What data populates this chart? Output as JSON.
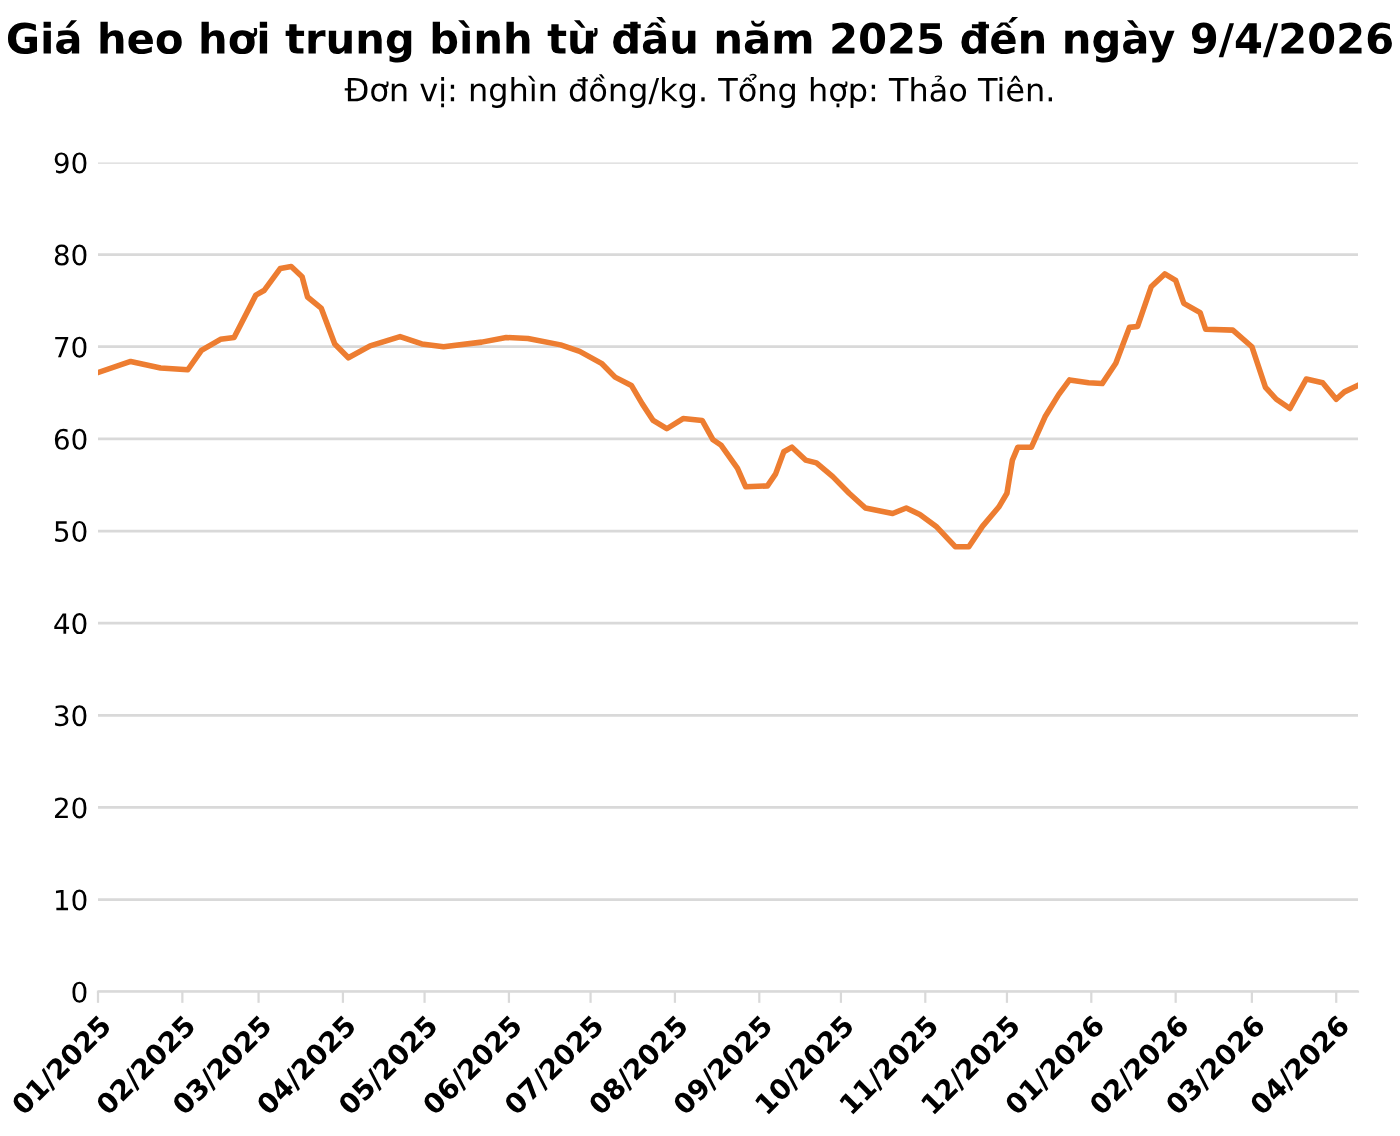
{
  "chart_data": {
    "type": "line",
    "title": "Giá heo hơi trung bình từ đầu năm 2025 đến ngày 9/4/2026",
    "subtitle": "Đơn vị: nghìn đồng/kg. Tổng hợp: Thảo Tiên.",
    "x": [
      "2025-01-01",
      "2025-01-13",
      "2025-01-24",
      "2025-02-03",
      "2025-02-08",
      "2025-02-15",
      "2025-02-20",
      "2025-02-28",
      "2025-03-03",
      "2025-03-09",
      "2025-03-13",
      "2025-03-17",
      "2025-03-19",
      "2025-03-24",
      "2025-03-29",
      "2025-04-03",
      "2025-04-11",
      "2025-04-22",
      "2025-04-30",
      "2025-05-08",
      "2025-05-22",
      "2025-05-31",
      "2025-06-08",
      "2025-06-20",
      "2025-06-27",
      "2025-07-05",
      "2025-07-10",
      "2025-07-16",
      "2025-07-20",
      "2025-07-24",
      "2025-07-29",
      "2025-08-04",
      "2025-08-11",
      "2025-08-15",
      "2025-08-18",
      "2025-08-24",
      "2025-08-27",
      "2025-09-04",
      "2025-09-07",
      "2025-09-10",
      "2025-09-13",
      "2025-09-18",
      "2025-09-22",
      "2025-09-28",
      "2025-10-04",
      "2025-10-10",
      "2025-10-20",
      "2025-10-25",
      "2025-10-30",
      "2025-11-05",
      "2025-11-12",
      "2025-11-17",
      "2025-11-22",
      "2025-11-28",
      "2025-12-01",
      "2025-12-03",
      "2025-12-05",
      "2025-12-10",
      "2025-12-15",
      "2025-12-20",
      "2025-12-24",
      "2025-12-31",
      "2026-01-05",
      "2026-01-10",
      "2026-01-15",
      "2026-01-18",
      "2026-01-23",
      "2026-01-28",
      "2026-02-01",
      "2026-02-04",
      "2026-02-10",
      "2026-02-12",
      "2026-02-22",
      "2026-03-01",
      "2026-03-06",
      "2026-03-10",
      "2026-03-15",
      "2026-03-21",
      "2026-03-27",
      "2026-04-01",
      "2026-04-04",
      "2026-04-09"
    ],
    "series": [
      {
        "color": "#ed7d31",
        "values": [
          67.2,
          68.4,
          67.7,
          67.5,
          69.6,
          70.8,
          71.0,
          75.6,
          76.1,
          78.5,
          78.7,
          77.6,
          75.4,
          74.2,
          70.3,
          68.8,
          70.1,
          71.1,
          70.3,
          70.0,
          70.5,
          71.0,
          70.9,
          70.2,
          69.5,
          68.2,
          66.7,
          65.8,
          63.8,
          62.0,
          61.1,
          62.2,
          62.0,
          59.9,
          59.3,
          56.8,
          54.8,
          54.9,
          56.2,
          58.6,
          59.1,
          57.7,
          57.4,
          55.9,
          54.1,
          52.5,
          51.9,
          52.5,
          51.8,
          50.5,
          48.3,
          48.3,
          50.5,
          52.6,
          54.1,
          57.7,
          59.1,
          59.1,
          62.4,
          64.8,
          66.4,
          66.1,
          66.0,
          68.2,
          72.1,
          72.2,
          76.5,
          77.9,
          77.2,
          74.7,
          73.7,
          71.9,
          71.8,
          70.0,
          65.6,
          64.3,
          63.3,
          66.5,
          66.1,
          64.3,
          65.1,
          65.8
        ]
      }
    ],
    "xlim": [
      "2025-01-01",
      "2026-04-09"
    ],
    "xticks": [
      {
        "value": "2025-01-01",
        "label": "01/2025"
      },
      {
        "value": "2025-02-01",
        "label": "02/2025"
      },
      {
        "value": "2025-03-01",
        "label": "03/2025"
      },
      {
        "value": "2025-04-01",
        "label": "04/2025"
      },
      {
        "value": "2025-05-01",
        "label": "05/2025"
      },
      {
        "value": "2025-06-01",
        "label": "06/2025"
      },
      {
        "value": "2025-07-01",
        "label": "07/2025"
      },
      {
        "value": "2025-08-01",
        "label": "08/2025"
      },
      {
        "value": "2025-09-01",
        "label": "09/2025"
      },
      {
        "value": "2025-10-01",
        "label": "10/2025"
      },
      {
        "value": "2025-11-01",
        "label": "11/2025"
      },
      {
        "value": "2025-12-01",
        "label": "12/2025"
      },
      {
        "value": "2026-01-01",
        "label": "01/2026"
      },
      {
        "value": "2026-02-01",
        "label": "02/2026"
      },
      {
        "value": "2026-03-01",
        "label": "03/2026"
      },
      {
        "value": "2026-04-01",
        "label": "04/2026"
      }
    ],
    "ylim": [
      0,
      90
    ],
    "yticks": [
      0,
      10,
      20,
      30,
      40,
      50,
      60,
      70,
      80,
      90
    ],
    "grid": "y",
    "marker": "none",
    "line_style": "solid"
  }
}
